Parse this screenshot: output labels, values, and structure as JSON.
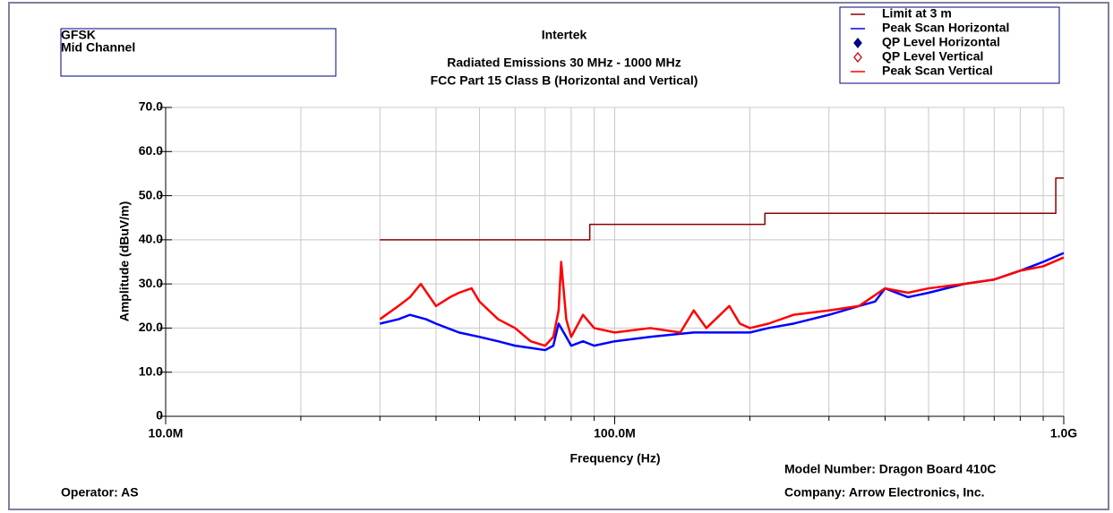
{
  "chart_data": {
    "type": "line",
    "title": "Intertek",
    "subtitle": [
      "Radiated Emissions 30 MHz - 1000 MHz",
      "FCC Part 15 Class B (Horizontal and Vertical)"
    ],
    "info_box": [
      "GFSK",
      "Mid Channel"
    ],
    "xlabel": "Frequency (Hz)",
    "ylabel": "Amplitude (dBuV/m)",
    "footer": {
      "operator": "Operator: AS",
      "model": "Model Number: Dragon Board 410C",
      "company": "Company: Arrow Electronics, Inc."
    },
    "xscale": "log",
    "xlim": [
      10000000,
      1000000000
    ],
    "xticks": [
      {
        "value": 10000000,
        "label": "10.0M"
      },
      {
        "value": 100000000,
        "label": "100.0M"
      },
      {
        "value": 1000000000,
        "label": "1.0G"
      }
    ],
    "xminorticks": [
      20000000,
      30000000,
      40000000,
      50000000,
      60000000,
      70000000,
      80000000,
      90000000,
      200000000,
      300000000,
      400000000,
      500000000,
      600000000,
      700000000,
      800000000,
      900000000
    ],
    "ylim": [
      0,
      70
    ],
    "yticks": [
      0,
      {
        "value": 10,
        "label": "10.0"
      },
      {
        "value": 20,
        "label": "20.0"
      },
      {
        "value": 30,
        "label": "30.0"
      },
      {
        "value": 40,
        "label": "40.0"
      },
      {
        "value": 50,
        "label": "50.0"
      },
      {
        "value": 60,
        "label": "60.0"
      },
      {
        "value": 70,
        "label": "70.0"
      }
    ],
    "grid": true,
    "legend": "upper right",
    "series": [
      {
        "name": "Limit at 3 m",
        "color": "#8b0000",
        "style": "line",
        "x": [
          30000000,
          88000000,
          88000000,
          216000000,
          216000000,
          960000000,
          960000000,
          1000000000
        ],
        "values": [
          40,
          40,
          43.5,
          43.5,
          46,
          46,
          54,
          54
        ]
      },
      {
        "name": "Peak Scan Horizontal",
        "color": "#0000ff",
        "style": "line",
        "x": [
          30000000,
          33000000,
          35000000,
          38000000,
          40000000,
          45000000,
          50000000,
          55000000,
          60000000,
          65000000,
          70000000,
          73000000,
          75000000,
          78000000,
          80000000,
          85000000,
          90000000,
          100000000,
          120000000,
          150000000,
          180000000,
          200000000,
          220000000,
          250000000,
          300000000,
          350000000,
          380000000,
          400000000,
          450000000,
          500000000,
          600000000,
          700000000,
          800000000,
          900000000,
          1000000000
        ],
        "values": [
          21,
          22,
          23,
          22,
          21,
          19,
          18,
          17,
          16,
          15.5,
          15,
          16,
          21,
          18,
          16,
          17,
          16,
          17,
          18,
          19,
          19,
          19,
          20,
          21,
          23,
          25,
          26,
          29,
          27,
          28,
          30,
          31,
          33,
          35,
          37
        ]
      },
      {
        "name": "QP Level Horizontal",
        "color": "#000080",
        "style": "filled-diamond",
        "x": [],
        "values": []
      },
      {
        "name": "QP Level Vertical",
        "color": "#cc0000",
        "style": "hollow-diamond",
        "x": [],
        "values": []
      },
      {
        "name": "Peak Scan Vertical",
        "color": "#ff0000",
        "style": "line",
        "x": [
          30000000,
          33000000,
          35000000,
          37000000,
          40000000,
          43000000,
          45000000,
          48000000,
          50000000,
          55000000,
          60000000,
          65000000,
          70000000,
          73000000,
          75000000,
          76000000,
          78000000,
          80000000,
          85000000,
          90000000,
          100000000,
          120000000,
          140000000,
          150000000,
          160000000,
          180000000,
          190000000,
          200000000,
          220000000,
          250000000,
          300000000,
          350000000,
          400000000,
          450000000,
          500000000,
          600000000,
          700000000,
          800000000,
          900000000,
          1000000000
        ],
        "values": [
          22,
          25,
          27,
          30,
          25,
          27,
          28,
          29,
          26,
          22,
          20,
          17,
          16,
          18,
          24,
          35,
          22,
          18,
          23,
          20,
          19,
          20,
          19,
          24,
          20,
          25,
          21,
          20,
          21,
          23,
          24,
          25,
          29,
          28,
          29,
          30,
          31,
          33,
          34,
          36
        ]
      }
    ]
  }
}
